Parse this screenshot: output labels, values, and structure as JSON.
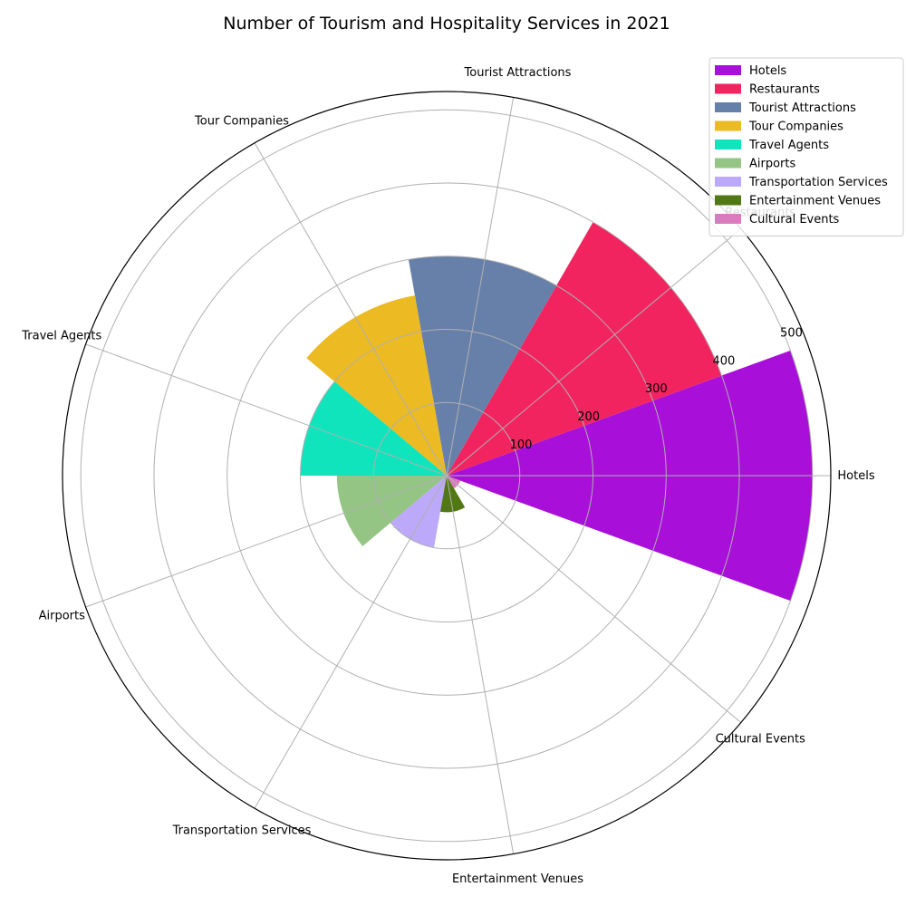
{
  "chart_data": {
    "type": "polar-bar",
    "title": "Number of Tourism and Hospitality Services in 2021",
    "categories": [
      "Hotels",
      "Restaurants",
      "Tourist Attractions",
      "Tour Companies",
      "Travel Agents",
      "Airports",
      "Transportation Services",
      "Entertainment Venues",
      "Cultural Events"
    ],
    "values": [
      500,
      400,
      300,
      250,
      200,
      150,
      100,
      50,
      20
    ],
    "colors": [
      "#a80fd8",
      "#f2245f",
      "#6680aa",
      "#ecba22",
      "#10e4bc",
      "#94c584",
      "#bca9fa",
      "#527715",
      "#d97bbf"
    ],
    "radial_ticks": [
      100,
      200,
      300,
      400,
      500
    ],
    "rlim": [
      0,
      525
    ],
    "grid": true,
    "legend": {
      "position": "top-right",
      "entries": [
        "Hotels",
        "Restaurants",
        "Tourist Attractions",
        "Tour Companies",
        "Travel Agents",
        "Airports",
        "Transportation Services",
        "Entertainment Venues",
        "Cultural Events"
      ]
    }
  }
}
